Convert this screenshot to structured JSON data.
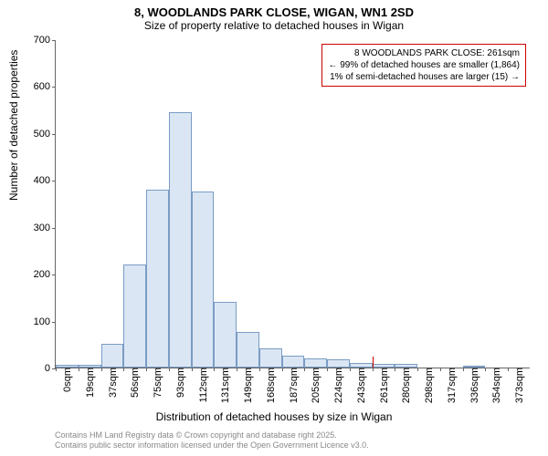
{
  "title": "8, WOODLANDS PARK CLOSE, WIGAN, WN1 2SD",
  "subtitle": "Size of property relative to detached houses in Wigan",
  "y_axis_label": "Number of detached properties",
  "x_axis_label": "Distribution of detached houses by size in Wigan",
  "attribution_line1": "Contains HM Land Registry data © Crown copyright and database right 2025.",
  "attribution_line2": "Contains public sector information licensed under the Open Government Licence v3.0.",
  "annotation": {
    "line1": "8 WOODLANDS PARK CLOSE: 261sqm",
    "line2": "← 99% of detached houses are smaller (1,864)",
    "line3": "1% of semi-detached houses are larger (15) →"
  },
  "chart": {
    "type": "histogram",
    "ylim": [
      0,
      700
    ],
    "ytick_step": 100,
    "y_ticks": [
      0,
      100,
      200,
      300,
      400,
      500,
      600,
      700
    ],
    "x_tick_labels": [
      "0sqm",
      "19sqm",
      "37sqm",
      "56sqm",
      "75sqm",
      "93sqm",
      "112sqm",
      "131sqm",
      "149sqm",
      "168sqm",
      "187sqm",
      "205sqm",
      "224sqm",
      "243sqm",
      "261sqm",
      "280sqm",
      "298sqm",
      "317sqm",
      "336sqm",
      "354sqm",
      "373sqm"
    ],
    "bar_values": [
      5,
      5,
      50,
      220,
      380,
      545,
      375,
      140,
      75,
      40,
      25,
      20,
      18,
      10,
      8,
      8,
      0,
      0,
      4,
      0,
      0
    ],
    "bar_fill_color": "#dbe6f4",
    "bar_border_color": "#7a9cc4",
    "background_color": "#ffffff",
    "axis_color": "#666666",
    "marker_bin_index": 14,
    "marker_color": "#cc0000",
    "annotation_border": "#cc0000",
    "title_fontsize": 13,
    "subtitle_fontsize": 12,
    "label_fontsize": 12,
    "tick_fontsize": 11,
    "annotation_fontsize": 10,
    "attribution_fontsize": 9,
    "attribution_color": "#888888"
  }
}
